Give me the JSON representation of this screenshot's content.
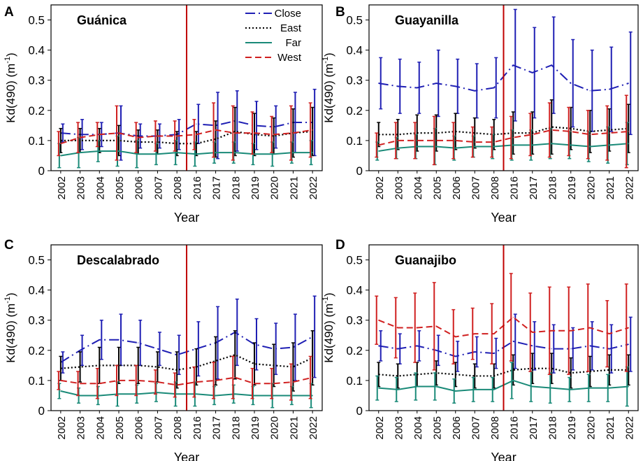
{
  "figure": {
    "x_label": "Year",
    "y_label_main": "Kd(490) (m",
    "y_label_sup": "-1",
    "y_label_end": ")"
  },
  "legend": [
    "Close",
    "East",
    "Far",
    "West"
  ],
  "colors": {
    "Close": "#1f1fb4",
    "East": "#000000",
    "Far": "#1a8a78",
    "West": "#d02020",
    "divider": "#c00000"
  },
  "chart_data": [
    {
      "panel": "A",
      "title": "Guánica",
      "type": "line",
      "categories": [
        "2002",
        "2003",
        "2004",
        "2005",
        "2006",
        "2007",
        "2008",
        "2016",
        "2017",
        "2018",
        "2019",
        "2020",
        "2021",
        "2022"
      ],
      "ylim": [
        0,
        0.55
      ],
      "yticks": [
        "0",
        "0.1",
        "0.2",
        "0.3",
        "0.4",
        "0.5"
      ],
      "xlabel": "Year",
      "ylabel": "Kd(490) (m-1)",
      "divider_after": "2008",
      "series": [
        {
          "name": "Close",
          "values": [
            0.125,
            0.12,
            0.12,
            0.125,
            0.115,
            0.115,
            0.12,
            0.155,
            0.15,
            0.165,
            0.15,
            0.145,
            0.16,
            0.16
          ],
          "errors": [
            0.03,
            0.05,
            0.04,
            0.09,
            0.04,
            0.04,
            0.05,
            0.065,
            0.11,
            0.1,
            0.08,
            0.07,
            0.1,
            0.11
          ]
        },
        {
          "name": "East",
          "values": [
            0.1,
            0.1,
            0.1,
            0.1,
            0.095,
            0.095,
            0.09,
            0.09,
            0.105,
            0.13,
            0.12,
            0.115,
            0.125,
            0.13
          ],
          "errors": [
            0.04,
            0.04,
            0.04,
            0.05,
            0.04,
            0.04,
            0.04,
            0.04,
            0.06,
            0.08,
            0.07,
            0.06,
            0.08,
            0.08
          ]
        },
        {
          "name": "Far",
          "values": [
            0.05,
            0.06,
            0.065,
            0.065,
            0.055,
            0.055,
            0.06,
            0.055,
            0.06,
            0.06,
            0.055,
            0.055,
            0.06,
            0.06
          ],
          "errors": [
            0.04,
            0.05,
            0.035,
            0.05,
            0.045,
            0.035,
            0.04,
            0.04,
            0.035,
            0.035,
            0.035,
            0.04,
            0.035,
            0.04
          ]
        },
        {
          "name": "West",
          "values": [
            0.09,
            0.11,
            0.12,
            0.125,
            0.11,
            0.115,
            0.115,
            0.12,
            0.135,
            0.125,
            0.125,
            0.12,
            0.125,
            0.135
          ],
          "errors": [
            0.04,
            0.05,
            0.04,
            0.09,
            0.05,
            0.05,
            0.05,
            0.05,
            0.09,
            0.09,
            0.07,
            0.06,
            0.09,
            0.09
          ]
        }
      ]
    },
    {
      "panel": "B",
      "title": "Guayanilla",
      "type": "line",
      "categories": [
        "2002",
        "2003",
        "2004",
        "2005",
        "2006",
        "2007",
        "2008",
        "2016",
        "2017",
        "2018",
        "2019",
        "2020",
        "2021",
        "2022"
      ],
      "ylim": [
        0,
        0.55
      ],
      "yticks": [
        "0",
        "0.1",
        "0.2",
        "0.3",
        "0.4",
        "0.5"
      ],
      "xlabel": "Year",
      "ylabel": "Kd(490) (m-1)",
      "divider_after": "2008",
      "series": [
        {
          "name": "Close",
          "values": [
            0.29,
            0.28,
            0.275,
            0.29,
            0.28,
            0.265,
            0.275,
            0.35,
            0.325,
            0.35,
            0.29,
            0.265,
            0.27,
            0.29
          ],
          "errors": [
            0.085,
            0.09,
            0.085,
            0.11,
            0.09,
            0.09,
            0.1,
            0.185,
            0.15,
            0.16,
            0.145,
            0.135,
            0.14,
            0.17
          ]
        },
        {
          "name": "East",
          "values": [
            0.12,
            0.12,
            0.125,
            0.125,
            0.13,
            0.125,
            0.12,
            0.125,
            0.125,
            0.145,
            0.14,
            0.13,
            0.135,
            0.14
          ],
          "errors": [
            0.04,
            0.05,
            0.06,
            0.06,
            0.06,
            0.05,
            0.05,
            0.07,
            0.07,
            0.09,
            0.07,
            0.07,
            0.07,
            0.08
          ]
        },
        {
          "name": "Far",
          "values": [
            0.065,
            0.075,
            0.08,
            0.08,
            0.075,
            0.08,
            0.08,
            0.085,
            0.085,
            0.09,
            0.085,
            0.08,
            0.085,
            0.09
          ],
          "errors": [
            0.03,
            0.035,
            0.04,
            0.06,
            0.04,
            0.035,
            0.04,
            0.05,
            0.05,
            0.05,
            0.045,
            0.05,
            0.06,
            0.07
          ]
        },
        {
          "name": "West",
          "values": [
            0.085,
            0.1,
            0.1,
            0.1,
            0.1,
            0.095,
            0.095,
            0.11,
            0.12,
            0.135,
            0.13,
            0.12,
            0.125,
            0.13
          ],
          "errors": [
            0.04,
            0.06,
            0.06,
            0.08,
            0.06,
            0.05,
            0.05,
            0.07,
            0.07,
            0.09,
            0.08,
            0.08,
            0.09,
            0.12
          ]
        }
      ]
    },
    {
      "panel": "C",
      "title": "Descalabrado",
      "type": "line",
      "categories": [
        "2002",
        "2003",
        "2004",
        "2005",
        "2006",
        "2007",
        "2008",
        "2016",
        "2017",
        "2018",
        "2019",
        "2020",
        "2021",
        "2022"
      ],
      "ylim": [
        0,
        0.55
      ],
      "yticks": [
        "0",
        "0.1",
        "0.2",
        "0.3",
        "0.4",
        "0.5"
      ],
      "xlabel": "Year",
      "ylabel": "Kd(490) (m-1)",
      "divider_after": "2008",
      "series": [
        {
          "name": "Close",
          "values": [
            0.16,
            0.2,
            0.235,
            0.235,
            0.225,
            0.205,
            0.185,
            0.205,
            0.225,
            0.26,
            0.22,
            0.205,
            0.21,
            0.245
          ],
          "errors": [
            0.035,
            0.05,
            0.065,
            0.085,
            0.075,
            0.055,
            0.065,
            0.09,
            0.12,
            0.11,
            0.085,
            0.085,
            0.11,
            0.135
          ]
        },
        {
          "name": "East",
          "values": [
            0.14,
            0.145,
            0.15,
            0.15,
            0.15,
            0.145,
            0.135,
            0.145,
            0.165,
            0.185,
            0.155,
            0.15,
            0.145,
            0.175
          ],
          "errors": [
            0.04,
            0.05,
            0.06,
            0.06,
            0.06,
            0.05,
            0.06,
            0.06,
            0.08,
            0.08,
            0.07,
            0.07,
            0.08,
            0.09
          ]
        },
        {
          "name": "Far",
          "values": [
            0.065,
            0.05,
            0.05,
            0.055,
            0.055,
            0.06,
            0.055,
            0.055,
            0.05,
            0.055,
            0.05,
            0.05,
            0.05,
            0.05
          ],
          "errors": [
            0.025,
            0.025,
            0.03,
            0.04,
            0.03,
            0.03,
            0.04,
            0.04,
            0.03,
            0.03,
            0.03,
            0.04,
            0.03,
            0.04
          ]
        },
        {
          "name": "West",
          "values": [
            0.1,
            0.09,
            0.09,
            0.1,
            0.1,
            0.095,
            0.085,
            0.095,
            0.1,
            0.11,
            0.09,
            0.09,
            0.095,
            0.11
          ],
          "errors": [
            0.03,
            0.04,
            0.05,
            0.05,
            0.05,
            0.04,
            0.04,
            0.05,
            0.06,
            0.07,
            0.05,
            0.05,
            0.06,
            0.07
          ]
        }
      ]
    },
    {
      "panel": "D",
      "title": "Guanajibo",
      "type": "line",
      "categories": [
        "2002",
        "2003",
        "2004",
        "2005",
        "2006",
        "2007",
        "2008",
        "2016",
        "2017",
        "2018",
        "2019",
        "2020",
        "2021",
        "2022"
      ],
      "ylim": [
        0,
        0.55
      ],
      "yticks": [
        "0",
        "0.1",
        "0.2",
        "0.3",
        "0.4",
        "0.5"
      ],
      "xlabel": "Year",
      "ylabel": "Kd(490) (m-1)",
      "divider_after": "2008",
      "series": [
        {
          "name": "Close",
          "values": [
            0.215,
            0.205,
            0.215,
            0.2,
            0.18,
            0.195,
            0.19,
            0.23,
            0.215,
            0.205,
            0.205,
            0.215,
            0.205,
            0.22
          ],
          "errors": [
            0.05,
            0.05,
            0.05,
            0.05,
            0.05,
            0.05,
            0.05,
            0.09,
            0.08,
            0.08,
            0.07,
            0.08,
            0.08,
            0.09
          ]
        },
        {
          "name": "East",
          "values": [
            0.12,
            0.115,
            0.12,
            0.125,
            0.12,
            0.115,
            0.115,
            0.135,
            0.14,
            0.14,
            0.125,
            0.13,
            0.135,
            0.135
          ],
          "errors": [
            0.04,
            0.04,
            0.04,
            0.04,
            0.04,
            0.04,
            0.04,
            0.05,
            0.05,
            0.05,
            0.05,
            0.05,
            0.05,
            0.05
          ]
        },
        {
          "name": "Far",
          "values": [
            0.075,
            0.07,
            0.08,
            0.08,
            0.065,
            0.07,
            0.07,
            0.1,
            0.08,
            0.075,
            0.07,
            0.075,
            0.075,
            0.08
          ],
          "errors": [
            0.04,
            0.04,
            0.045,
            0.045,
            0.04,
            0.04,
            0.04,
            0.06,
            0.05,
            0.05,
            0.04,
            0.045,
            0.045,
            0.065
          ]
        },
        {
          "name": "West",
          "values": [
            0.3,
            0.275,
            0.275,
            0.28,
            0.245,
            0.255,
            0.255,
            0.31,
            0.26,
            0.265,
            0.265,
            0.275,
            0.255,
            0.275
          ],
          "errors": [
            0.08,
            0.1,
            0.115,
            0.145,
            0.09,
            0.085,
            0.1,
            0.145,
            0.13,
            0.145,
            0.145,
            0.145,
            0.11,
            0.145
          ]
        }
      ]
    }
  ]
}
